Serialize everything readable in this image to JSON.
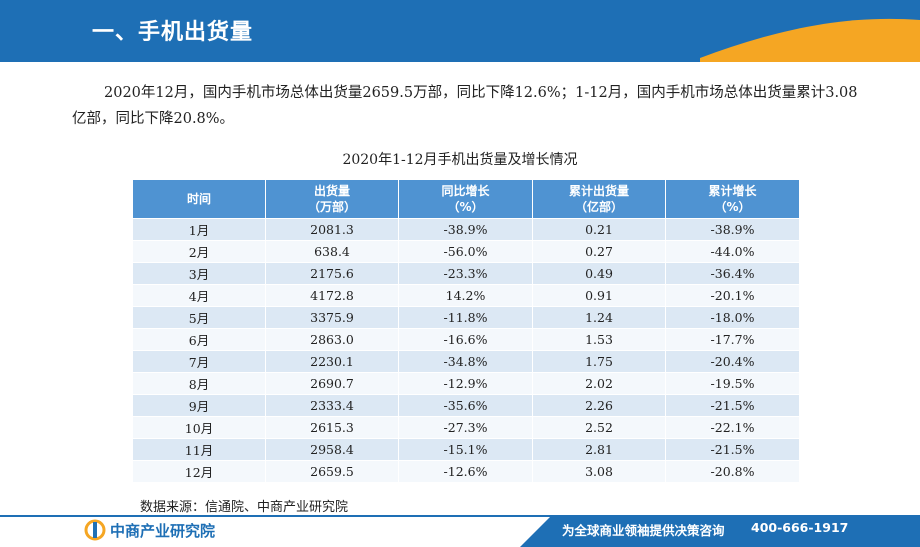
{
  "header": {
    "title": "一、手机出货量"
  },
  "intro": {
    "text": "2020年12月，国内手机市场总体出货量2659.5万部，同比下降12.6%；1-12月，国内手机市场总体出货量累计3.08亿部，同比下降20.8%。"
  },
  "table": {
    "title": "2020年1-12月手机出货量及增长情况",
    "headers": [
      {
        "line1": "时间",
        "line2": ""
      },
      {
        "line1": "出货量",
        "line2": "（万部）"
      },
      {
        "line1": "同比增长",
        "line2": "（%）"
      },
      {
        "line1": "累计出货量",
        "line2": "（亿部）"
      },
      {
        "line1": "累计增长",
        "line2": "（%）"
      }
    ],
    "rows": [
      [
        "1月",
        "2081.3",
        "-38.9%",
        "0.21",
        "-38.9%"
      ],
      [
        "2月",
        "638.4",
        "-56.0%",
        "0.27",
        "-44.0%"
      ],
      [
        "3月",
        "2175.6",
        "-23.3%",
        "0.49",
        "-36.4%"
      ],
      [
        "4月",
        "4172.8",
        "14.2%",
        "0.91",
        "-20.1%"
      ],
      [
        "5月",
        "3375.9",
        "-11.8%",
        "1.24",
        "-18.0%"
      ],
      [
        "6月",
        "2863.0",
        "-16.6%",
        "1.53",
        "-17.7%"
      ],
      [
        "7月",
        "2230.1",
        "-34.8%",
        "1.75",
        "-20.4%"
      ],
      [
        "8月",
        "2690.7",
        "-12.9%",
        "2.02",
        "-19.5%"
      ],
      [
        "9月",
        "2333.4",
        "-35.6%",
        "2.26",
        "-21.5%"
      ],
      [
        "10月",
        "2615.3",
        "-27.3%",
        "2.52",
        "-22.1%"
      ],
      [
        "11月",
        "2958.4",
        "-15.1%",
        "2.81",
        "-21.5%"
      ],
      [
        "12月",
        "2659.5",
        "-12.6%",
        "3.08",
        "-20.8%"
      ]
    ]
  },
  "source": "数据来源：信通院、中商产业研究院",
  "footer": {
    "logo_text": "中商产业研究院",
    "slogan": "为全球商业领袖提供决策咨询",
    "phone": "400-666-1917"
  },
  "colors": {
    "header_blue": "#1e6fb5",
    "header_orange": "#f5a623",
    "table_header": "#4f93d2",
    "row_odd": "#dce8f4",
    "row_even": "#f4f8fc"
  },
  "icons": {
    "logo": "zhongshang-logo-icon"
  }
}
